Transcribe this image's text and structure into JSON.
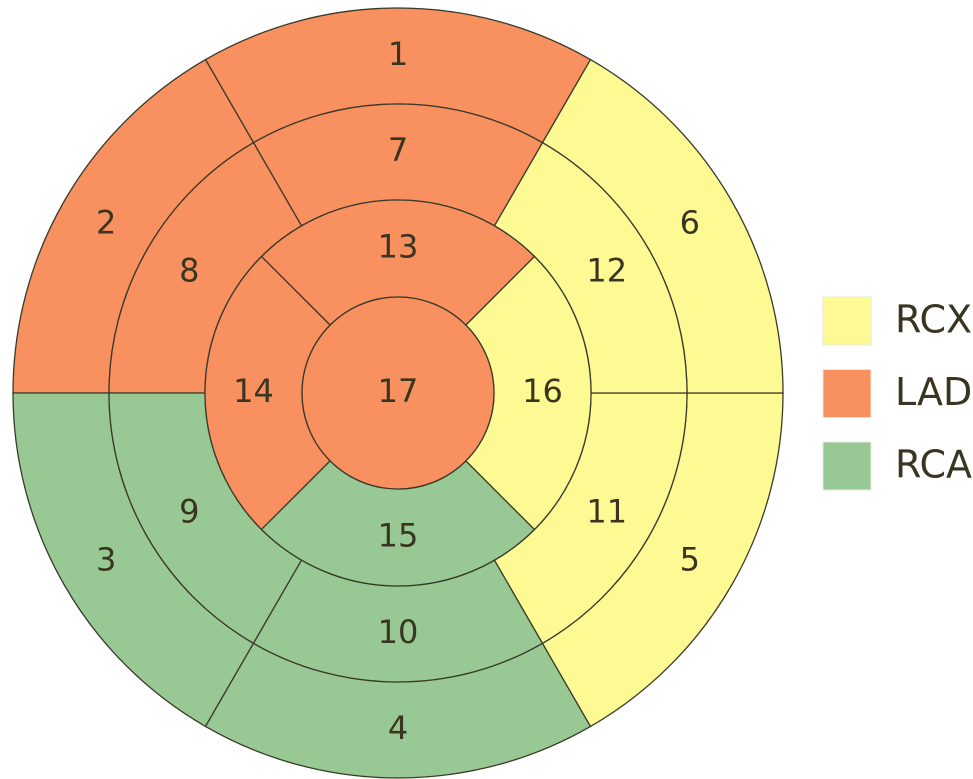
{
  "segments": [
    {
      "label": "1",
      "territory": "LAD"
    },
    {
      "label": "2",
      "territory": "LAD"
    },
    {
      "label": "3",
      "territory": "RCA"
    },
    {
      "label": "4",
      "territory": "RCA"
    },
    {
      "label": "5",
      "territory": "RCX"
    },
    {
      "label": "6",
      "territory": "RCX"
    },
    {
      "label": "7",
      "territory": "LAD"
    },
    {
      "label": "8",
      "territory": "LAD"
    },
    {
      "label": "9",
      "territory": "RCA"
    },
    {
      "label": "10",
      "territory": "RCA"
    },
    {
      "label": "11",
      "territory": "RCX"
    },
    {
      "label": "12",
      "territory": "RCX"
    },
    {
      "label": "13",
      "territory": "LAD"
    },
    {
      "label": "14",
      "territory": "LAD"
    },
    {
      "label": "15",
      "territory": "RCA"
    },
    {
      "label": "16",
      "territory": "RCX"
    },
    {
      "label": "17",
      "territory": "LAD"
    }
  ],
  "legend": [
    {
      "label": "RCX",
      "color": "#fdfa93"
    },
    {
      "label": "LAD",
      "color": "#f8905f"
    },
    {
      "label": "RCA",
      "color": "#98c995"
    }
  ]
}
